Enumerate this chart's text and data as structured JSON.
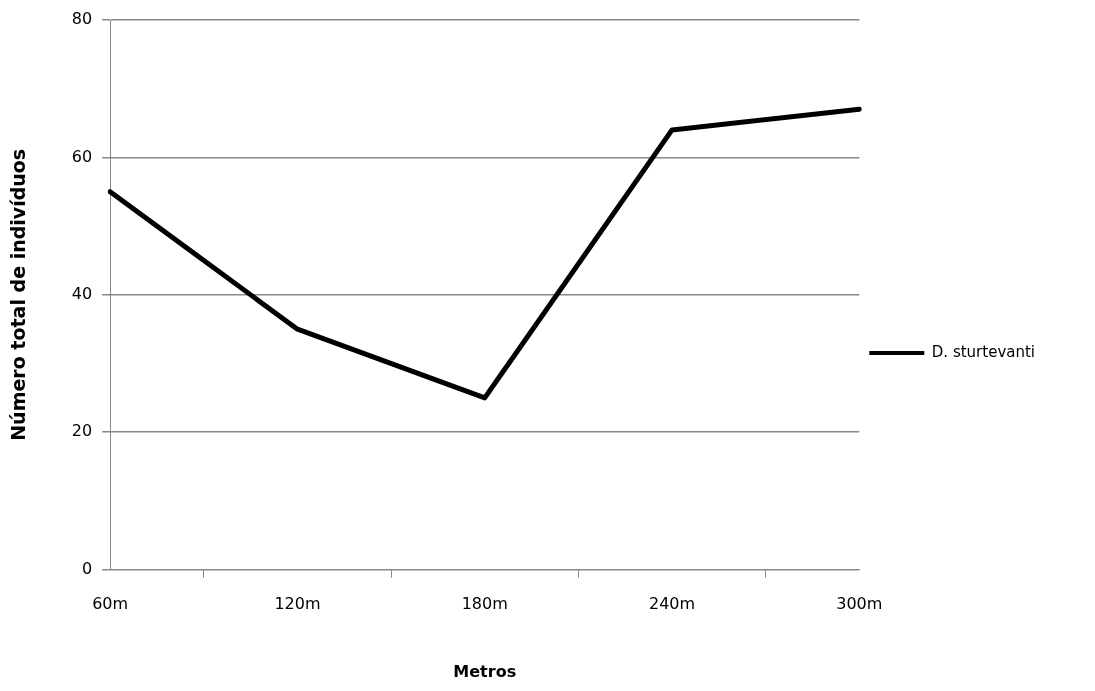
{
  "chart_data": {
    "type": "line",
    "xlabel": "Metros",
    "ylabel": "Número total de indivíduos",
    "categories": [
      "60m",
      "120m",
      "180m",
      "240m",
      "300m"
    ],
    "series": [
      {
        "name": "D. sturtevanti",
        "color": "#000000",
        "values": [
          55,
          35,
          25,
          64,
          67
        ]
      }
    ],
    "ylim": [
      0,
      80
    ],
    "yticks": [
      0,
      20,
      40,
      60,
      80
    ],
    "grid": "y",
    "legend": "right",
    "marker": "none",
    "line_style": "solid"
  }
}
